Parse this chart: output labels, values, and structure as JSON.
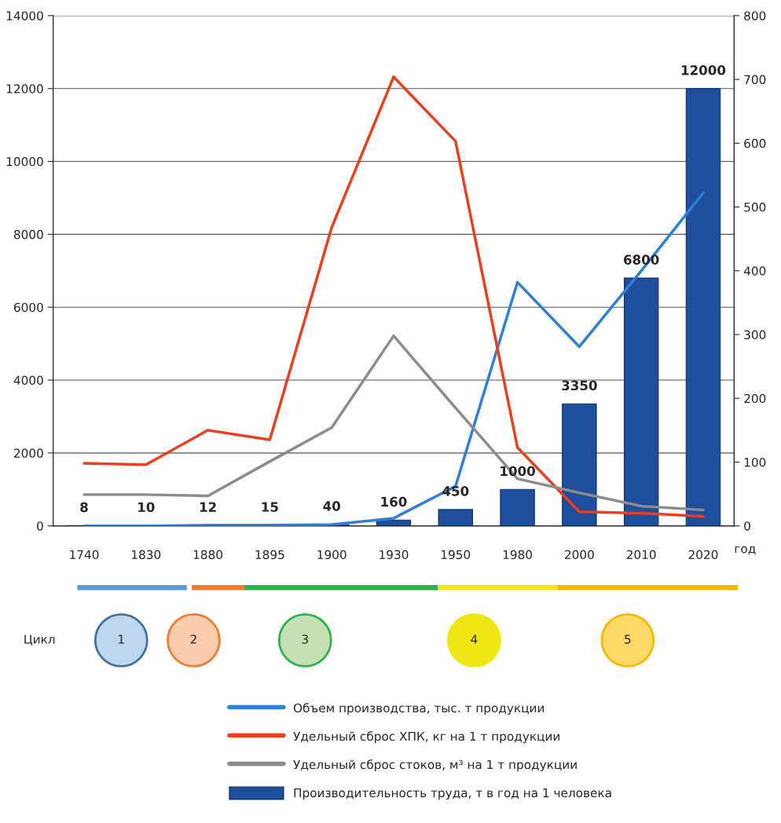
{
  "chart_data": {
    "type": "bar",
    "categories": [
      "1740",
      "1830",
      "1880",
      "1895",
      "1900",
      "1930",
      "1950",
      "1980",
      "2000",
      "2010",
      "2020"
    ],
    "xlabel": "год",
    "series": [
      {
        "name": "Объем производства, тыс. т продукции",
        "type": "line",
        "axis": "y2",
        "color": "#2f7ed8",
        "values": [
          0,
          0,
          1,
          1,
          2,
          12,
          62,
          382,
          281,
          400,
          522
        ]
      },
      {
        "name": "Удельный сброс ХПК, кг на 1 т продукции",
        "type": "line",
        "axis": "y2",
        "color": "#e8401c",
        "values": [
          98,
          96,
          150,
          135,
          468,
          704,
          603,
          123,
          22,
          20,
          15
        ]
      },
      {
        "name": "Удельный сброс стоков, м³ на 1 т продукции",
        "type": "line",
        "axis": "y2",
        "color": "#8c8c8c",
        "values": [
          49,
          49,
          47,
          101,
          154,
          298,
          185,
          74,
          52,
          31,
          25
        ]
      },
      {
        "name": "Производительность труда, т в год на 1 человека",
        "color": "#1f4e9c",
        "values": [
          8,
          10,
          12,
          15,
          40,
          160,
          450,
          1000,
          3350,
          6800,
          12000
        ],
        "value_labels": [
          "8",
          "10",
          "12",
          "15",
          "40",
          "160",
          "450",
          "1000",
          "3350",
          "6800",
          "12000"
        ]
      }
    ],
    "ylim": [
      0,
      14000
    ],
    "yticks": [
      0,
      2000,
      4000,
      6000,
      8000,
      10000,
      12000,
      14000
    ],
    "y2lim": [
      0,
      800
    ],
    "y2ticks": [
      0,
      100,
      200,
      300,
      400,
      500,
      600,
      700,
      800
    ],
    "grid": "y",
    "legend": "bottom",
    "annotations": [
      "Цикл",
      "1",
      "2",
      "3",
      "4",
      "5"
    ]
  }
}
